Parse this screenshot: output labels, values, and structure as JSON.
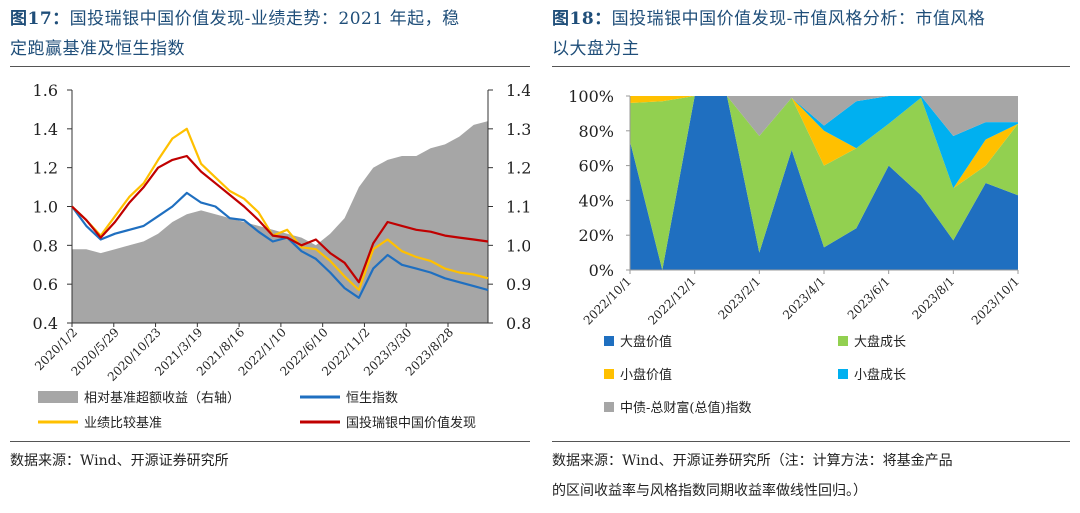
{
  "left": {
    "title_figure": "图17：",
    "title_text": "国投瑞银中国价值发现-业绩走势：2021 年起，稳定跑赢基准及恒生指数",
    "title_line1": "国投瑞银中国价值发现-业绩走势：2021 年起，稳",
    "title_line2": "定跑赢基准及恒生指数",
    "source": "数据来源：Wind、开源证券研究所"
  },
  "right": {
    "title_figure": "图18：",
    "title_line1": "国投瑞银中国价值发现-市值风格分析：市值风格",
    "title_line2": "以大盘为主",
    "source_line1": "数据来源：Wind、开源证券研究所（注：计算方法：将基金产品",
    "source_line2": "的区间收益率与风格指数同期收益率做线性回归。）"
  },
  "chart_data": [
    {
      "type": "line",
      "x_tick_labels": [
        "2020/1/2",
        "2020/5/29",
        "2020/10/23",
        "2021/3/19",
        "2021/8/16",
        "2022/1/10",
        "2022/6/10",
        "2022/11/2",
        "2023/3/30",
        "2023/8/28"
      ],
      "y_left_ticks": [
        "0.4",
        "0.6",
        "0.8",
        "1.0",
        "1.2",
        "1.4",
        "1.6"
      ],
      "ylim_left": [
        0.4,
        1.6
      ],
      "y_right_ticks": [
        "0.8",
        "0.9",
        "1.0",
        "1.1",
        "1.2",
        "1.3",
        "1.4"
      ],
      "ylim_right": [
        0.8,
        1.4
      ],
      "colors": {
        "area": "#a6a6a6",
        "hang_seng": "#1f6fc0",
        "benchmark": "#ffc000",
        "fund": "#c00000"
      },
      "series": [
        {
          "name": "相对基准超额收益（右轴）",
          "kind": "area",
          "axis": "right",
          "values": [
            0.99,
            0.99,
            0.98,
            0.99,
            1.0,
            1.01,
            1.03,
            1.06,
            1.08,
            1.09,
            1.08,
            1.07,
            1.06,
            1.05,
            1.04,
            1.03,
            1.02,
            1.0,
            1.03,
            1.07,
            1.15,
            1.2,
            1.22,
            1.23,
            1.23,
            1.25,
            1.26,
            1.28,
            1.31,
            1.32
          ]
        },
        {
          "name": "恒生指数",
          "kind": "line",
          "axis": "left",
          "values": [
            1.0,
            0.9,
            0.83,
            0.86,
            0.88,
            0.9,
            0.95,
            1.0,
            1.07,
            1.02,
            1.0,
            0.94,
            0.93,
            0.87,
            0.82,
            0.84,
            0.77,
            0.73,
            0.66,
            0.58,
            0.53,
            0.68,
            0.75,
            0.7,
            0.68,
            0.66,
            0.63,
            0.61,
            0.59,
            0.57
          ]
        },
        {
          "name": "业绩比较基准",
          "kind": "line",
          "axis": "left",
          "values": [
            1.0,
            0.93,
            0.85,
            0.95,
            1.05,
            1.12,
            1.24,
            1.35,
            1.4,
            1.22,
            1.15,
            1.08,
            1.04,
            0.97,
            0.85,
            0.88,
            0.79,
            0.78,
            0.72,
            0.64,
            0.57,
            0.78,
            0.83,
            0.77,
            0.74,
            0.72,
            0.68,
            0.66,
            0.65,
            0.63
          ]
        },
        {
          "name": "国投瑞银中国价值发现",
          "kind": "line",
          "axis": "left",
          "values": [
            1.0,
            0.93,
            0.84,
            0.92,
            1.02,
            1.1,
            1.2,
            1.24,
            1.26,
            1.18,
            1.12,
            1.06,
            1.0,
            0.93,
            0.85,
            0.84,
            0.8,
            0.83,
            0.76,
            0.71,
            0.61,
            0.81,
            0.92,
            0.9,
            0.88,
            0.87,
            0.85,
            0.84,
            0.83,
            0.82
          ]
        }
      ],
      "legend": [
        "相对基准超额收益（右轴）",
        "恒生指数",
        "业绩比较基准",
        "国投瑞银中国价值发现"
      ]
    },
    {
      "type": "area",
      "stacked": true,
      "x": [
        "2022/10/1",
        "2022/11/1",
        "2022/12/1",
        "2023/1/1",
        "2023/2/1",
        "2023/3/1",
        "2023/4/1",
        "2023/5/1",
        "2023/6/1",
        "2023/7/1",
        "2023/8/1",
        "2023/9/1",
        "2023/10/1"
      ],
      "x_tick_labels": [
        "2022/10/1",
        "2022/12/1",
        "2023/2/1",
        "2023/4/1",
        "2023/6/1",
        "2023/8/1",
        "2023/10/1"
      ],
      "y_ticks": [
        "0%",
        "20%",
        "40%",
        "60%",
        "80%",
        "100%"
      ],
      "ylim": [
        0,
        100
      ],
      "series": [
        {
          "name": "大盘价值",
          "color": "#1f6fc0",
          "values": [
            74,
            0,
            100,
            100,
            10,
            69,
            13,
            24,
            60,
            43,
            17,
            50,
            43
          ]
        },
        {
          "name": "大盘成长",
          "color": "#92d050",
          "values": [
            22,
            97,
            0,
            0,
            67,
            30,
            47,
            46,
            24,
            56,
            30,
            10,
            41
          ]
        },
        {
          "name": "小盘价值",
          "color": "#ffc000",
          "values": [
            4,
            3,
            0,
            0,
            0,
            0,
            20,
            0,
            0,
            0,
            0,
            15,
            0
          ]
        },
        {
          "name": "小盘成长",
          "color": "#00b0f0",
          "values": [
            0,
            0,
            0,
            0,
            0,
            0,
            3,
            27,
            16,
            1,
            30,
            10,
            1
          ]
        },
        {
          "name": "中债-总财富(总值)指数",
          "color": "#a6a6a6",
          "values": [
            0,
            0,
            0,
            0,
            23,
            1,
            17,
            3,
            0,
            0,
            23,
            15,
            15
          ]
        }
      ],
      "legend": [
        "大盘价值",
        "大盘成长",
        "小盘价值",
        "小盘成长",
        "中债-总财富(总值)指数"
      ]
    }
  ]
}
